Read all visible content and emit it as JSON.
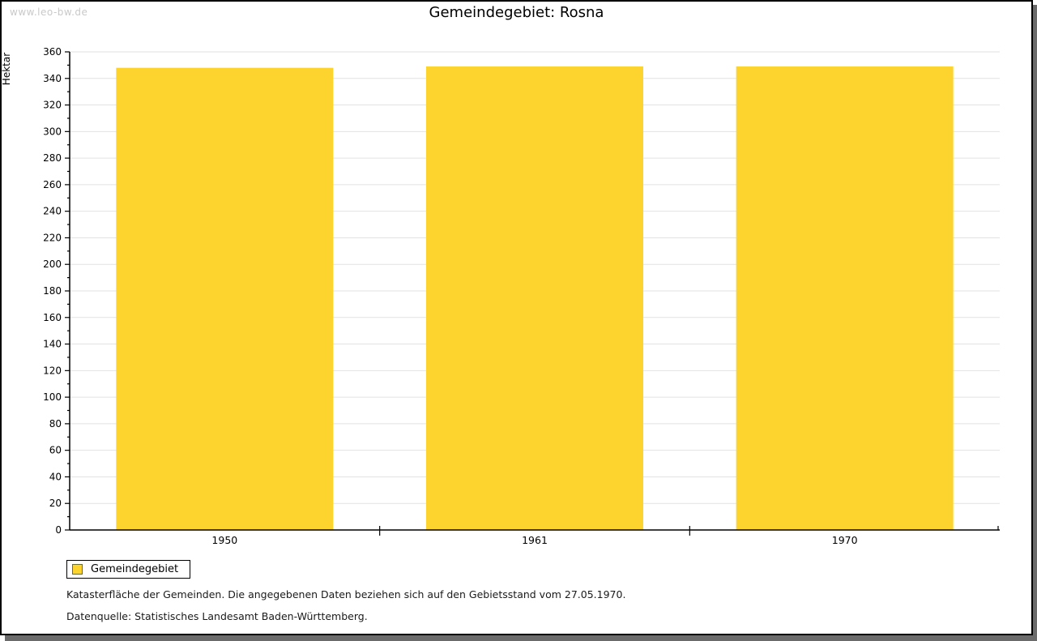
{
  "watermark": "www.leo-bw.de",
  "title": "Gemeindegebiet: Rosna",
  "chart_data": {
    "type": "bar",
    "title": "Gemeindegebiet: Rosna",
    "categories": [
      "1950",
      "1961",
      "1970"
    ],
    "series": [
      {
        "name": "Gemeindegebiet",
        "values": [
          348,
          349,
          349
        ]
      }
    ],
    "xlabel": "",
    "ylabel": "Hektar",
    "ylim": [
      0,
      360
    ],
    "ytick_major_step": 20,
    "ytick_minor_step": 10,
    "grid": true,
    "legend_position": "bottom-left",
    "bar_color": "#FDD42D",
    "grid_color": "#e2e2e2",
    "axis_color": "#000000"
  },
  "legend": {
    "items": [
      {
        "label": "Gemeindegebiet",
        "color": "#FDD42D"
      }
    ]
  },
  "footer": {
    "line1": "Katasterfläche der Gemeinden. Die angegebenen Daten beziehen sich auf den Gebietsstand vom 27.05.1970.",
    "line2": "Datenquelle: Statistisches Landesamt Baden-Württemberg."
  }
}
